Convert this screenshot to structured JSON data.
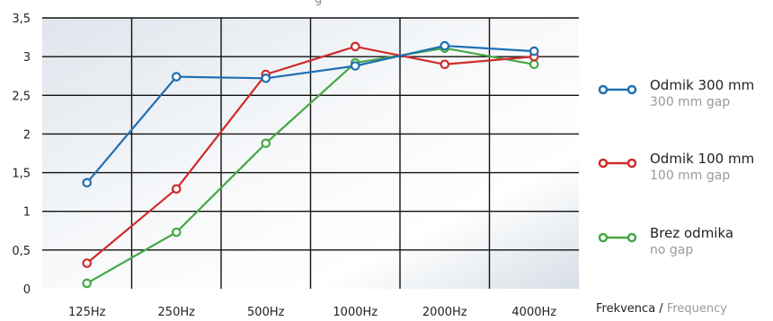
{
  "chart_data": {
    "type": "line",
    "top_label": "g",
    "categories": [
      "125Hz",
      "250Hz",
      "500Hz",
      "1000Hz",
      "2000Hz",
      "4000Hz"
    ],
    "ylim": [
      0,
      3.5
    ],
    "yticks": [
      "0",
      "0,5",
      "1",
      "1,5",
      "2",
      "2,5",
      "3",
      "3,5"
    ],
    "grid": true,
    "legend_position": "right",
    "xlabel_sl": "Frekvenca",
    "xlabel_sep": " / ",
    "xlabel_en": "Frequency",
    "series": [
      {
        "name": "Odmik 300 mm",
        "subtitle": "300 mm gap",
        "color": "#1f6fb2",
        "values": [
          1.37,
          2.74,
          2.72,
          2.88,
          3.14,
          3.07
        ]
      },
      {
        "name": "Odmik 100 mm",
        "subtitle": "100 mm gap",
        "color": "#cf2b2b",
        "values": [
          0.33,
          1.29,
          2.77,
          3.13,
          2.9,
          3.0
        ]
      },
      {
        "name": "Brez odmika",
        "subtitle": "no gap",
        "color": "#45a845",
        "values": [
          0.07,
          0.73,
          1.88,
          2.92,
          3.11,
          2.9
        ]
      }
    ]
  }
}
